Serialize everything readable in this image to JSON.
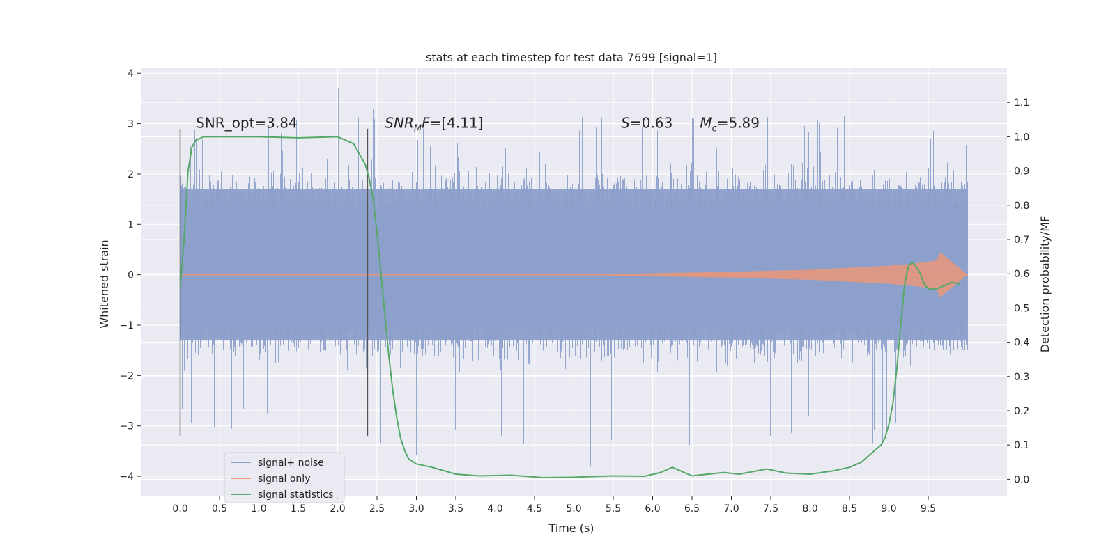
{
  "chart_data": {
    "type": "line",
    "title": "stats at each timestep for test data 7699 [signal=1]",
    "xlabel": "Time (s)",
    "ylabel": "Whitened strain",
    "ylabel_right": "Detection probability/MF",
    "xlim": [
      -0.5,
      10.5
    ],
    "ylim": [
      -4.4,
      4.1
    ],
    "ylim_right": [
      -0.05,
      1.2
    ],
    "x_ticks": [
      0.0,
      0.5,
      1.0,
      1.5,
      2.0,
      2.5,
      3.0,
      3.5,
      4.0,
      4.5,
      5.0,
      5.5,
      6.0,
      6.5,
      7.0,
      7.5,
      8.0,
      8.5,
      9.0,
      9.5
    ],
    "x_tick_labels": [
      "0.0",
      "0.5",
      "1.0",
      "1.5",
      "2.0",
      "2.5",
      "3.0",
      "3.5",
      "4.0",
      "4.5",
      "5.0",
      "5.5",
      "6.0",
      "6.5",
      "7.0",
      "7.5",
      "8.0",
      "8.5",
      "9.0",
      "9.5"
    ],
    "y_ticks": [
      -4,
      -3,
      -2,
      -1,
      0,
      1,
      2,
      3,
      4
    ],
    "y_tick_labels": [
      "−4",
      "−3",
      "−2",
      "−1",
      "0",
      "1",
      "2",
      "3",
      "4"
    ],
    "y_ticks_right": [
      0.0,
      0.1,
      0.2,
      0.3,
      0.4,
      0.5,
      0.6,
      0.7,
      0.8,
      0.9,
      1.0,
      1.1
    ],
    "y_tick_labels_right": [
      "0.0",
      "0.1",
      "0.2",
      "0.3",
      "0.4",
      "0.5",
      "0.6",
      "0.7",
      "0.8",
      "0.9",
      "1.0",
      "1.1"
    ],
    "grid": true,
    "legend_position": "bottom-left",
    "annotations": [
      {
        "text": "SNR_opt=3.84",
        "x": 0.2,
        "y": 3.0
      },
      {
        "text": "SNR_M F=[4.11]",
        "x": 2.6,
        "y": 3.0
      },
      {
        "text": "S=0.63",
        "x": 5.6,
        "y": 3.0
      },
      {
        "text": "M_c=5.89",
        "x": 6.6,
        "y": 3.0
      }
    ],
    "vertical_lines": [
      {
        "x": 0.0,
        "ymin": -3.2,
        "ymax": 2.9
      },
      {
        "x": 2.38,
        "ymin": -3.2,
        "ymax": 2.9
      }
    ],
    "series": [
      {
        "name": "signal+ noise",
        "color": "#8da0cb",
        "axis": "left",
        "x_range": [
          0.0,
          10.0
        ],
        "envelope": {
          "t": [
            0,
            1,
            2,
            3,
            4,
            5,
            6,
            7,
            8,
            9,
            10
          ],
          "upper": [
            2.9,
            3.1,
            3.75,
            2.9,
            3.0,
            3.2,
            3.0,
            3.4,
            3.2,
            3.3,
            2.6
          ],
          "lower": [
            -3.0,
            -3.1,
            -3.2,
            -3.6,
            -3.2,
            -4.05,
            -3.6,
            -3.5,
            -3.1,
            -3.55,
            -2.4
          ]
        },
        "dense_band": [
          -1.3,
          1.7
        ]
      },
      {
        "name": "signal only",
        "color": "#e9967a",
        "axis": "left",
        "x": [
          0.0,
          5.0,
          6.0,
          7.0,
          8.0,
          8.5,
          9.0,
          9.3,
          9.6,
          9.65,
          10.0
        ],
        "amplitude": [
          0.0,
          0.0,
          0.03,
          0.06,
          0.1,
          0.14,
          0.18,
          0.22,
          0.28,
          0.45,
          0.0
        ]
      },
      {
        "name": "signal statistics",
        "color": "#55a868",
        "axis": "right",
        "x": [
          0.0,
          0.05,
          0.1,
          0.15,
          0.2,
          0.3,
          0.5,
          1.0,
          1.5,
          2.0,
          2.1,
          2.2,
          2.25,
          2.3,
          2.35,
          2.4,
          2.45,
          2.5,
          2.55,
          2.6,
          2.65,
          2.7,
          2.75,
          2.8,
          2.85,
          2.9,
          3.0,
          3.2,
          3.5,
          3.8,
          4.2,
          4.6,
          5.0,
          5.5,
          5.9,
          6.1,
          6.25,
          6.35,
          6.5,
          6.7,
          6.9,
          7.1,
          7.45,
          7.7,
          8.0,
          8.3,
          8.5,
          8.65,
          8.8,
          8.9,
          8.95,
          9.0,
          9.05,
          9.1,
          9.15,
          9.2,
          9.25,
          9.3,
          9.35,
          9.4,
          9.45,
          9.5,
          9.6,
          9.7,
          9.8,
          9.9
        ],
        "values": [
          0.56,
          0.7,
          0.9,
          0.97,
          0.99,
          1.0,
          1.0,
          1.0,
          0.997,
          1.0,
          0.99,
          0.98,
          0.96,
          0.94,
          0.92,
          0.88,
          0.82,
          0.72,
          0.6,
          0.48,
          0.36,
          0.26,
          0.18,
          0.12,
          0.085,
          0.06,
          0.045,
          0.035,
          0.015,
          0.01,
          0.012,
          0.005,
          0.006,
          0.01,
          0.009,
          0.02,
          0.035,
          0.025,
          0.01,
          0.015,
          0.02,
          0.015,
          0.03,
          0.018,
          0.015,
          0.025,
          0.035,
          0.05,
          0.08,
          0.1,
          0.12,
          0.16,
          0.22,
          0.32,
          0.45,
          0.57,
          0.625,
          0.633,
          0.62,
          0.6,
          0.57,
          0.555,
          0.555,
          0.565,
          0.575,
          0.57
        ]
      }
    ]
  }
}
